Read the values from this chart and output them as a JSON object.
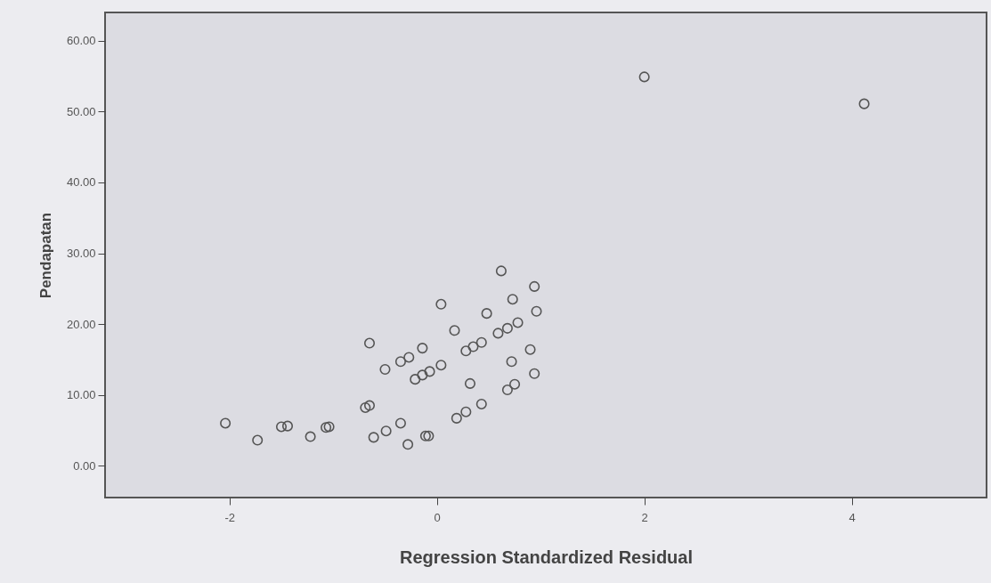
{
  "chart_data": {
    "type": "scatter",
    "xlabel": "Regression Standardized Residual",
    "ylabel": "Pendapatan",
    "x": [
      -2.04,
      -1.73,
      -1.5,
      -1.44,
      -1.22,
      -1.07,
      -1.04,
      -0.69,
      -0.65,
      -0.65,
      -0.61,
      -0.49,
      -0.5,
      -0.35,
      -0.35,
      -0.27,
      -0.28,
      -0.21,
      -0.14,
      -0.07,
      -0.14,
      -0.11,
      -0.08,
      0.04,
      0.04,
      0.17,
      0.19,
      0.28,
      0.28,
      0.35,
      0.43,
      0.32,
      0.43,
      0.48,
      0.59,
      0.68,
      0.78,
      0.62,
      0.72,
      0.68,
      0.75,
      0.73,
      0.9,
      0.94,
      0.96,
      0.94,
      2.0,
      4.12
    ],
    "series": [
      {
        "color": "#555555",
        "values": [
          6.0,
          3.6,
          5.5,
          5.6,
          4.1,
          5.4,
          5.5,
          8.2,
          8.5,
          17.3,
          4.0,
          4.9,
          13.6,
          6.0,
          14.7,
          15.3,
          3.0,
          12.2,
          12.8,
          13.3,
          16.6,
          4.2,
          4.2,
          14.2,
          22.8,
          19.1,
          6.7,
          7.6,
          16.2,
          16.8,
          17.4,
          11.6,
          8.7,
          21.5,
          18.7,
          19.4,
          20.2,
          27.5,
          14.7,
          10.7,
          11.5,
          23.5,
          16.4,
          25.3,
          21.8,
          13.0,
          54.9,
          51.1
        ]
      }
    ],
    "marker": "circle",
    "xlim": [
      -3.2,
      5.3
    ],
    "xticks": [
      -2,
      0,
      2,
      4
    ],
    "ylim": [
      -4.5,
      64
    ],
    "yticks": [
      {
        "value": 0,
        "label": "0.00"
      },
      {
        "value": 10,
        "label": "10.00"
      },
      {
        "value": 20,
        "label": "20.00"
      },
      {
        "value": 30,
        "label": "30.00"
      },
      {
        "value": 40,
        "label": "40.00"
      },
      {
        "value": 50,
        "label": "50.00"
      },
      {
        "value": 60,
        "label": "60.00"
      }
    ]
  }
}
